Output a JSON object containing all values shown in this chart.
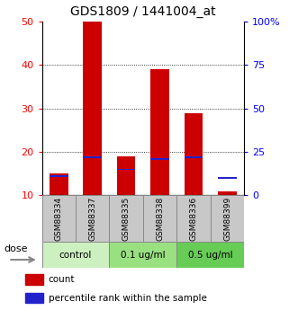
{
  "title": "GDS1809 / 1441004_at",
  "samples": [
    "GSM88334",
    "GSM88337",
    "GSM88335",
    "GSM88338",
    "GSM88336",
    "GSM88399"
  ],
  "red_values": [
    15,
    50,
    19,
    39,
    29,
    11
  ],
  "blue_values": [
    11,
    22,
    15,
    21,
    22,
    10
  ],
  "ylim_left": [
    10,
    50
  ],
  "ylim_right": [
    0,
    100
  ],
  "yticks_left": [
    10,
    20,
    30,
    40,
    50
  ],
  "yticks_right": [
    0,
    25,
    50,
    75,
    100
  ],
  "ytick_labels_right": [
    "0",
    "25",
    "50",
    "75",
    "100%"
  ],
  "dose_groups": [
    {
      "label": "control",
      "indices": [
        0,
        1
      ],
      "color": "#ccf0c0"
    },
    {
      "label": "0.1 ug/ml",
      "indices": [
        2,
        3
      ],
      "color": "#99e080"
    },
    {
      "label": "0.5 ug/ml",
      "indices": [
        4,
        5
      ],
      "color": "#66cc55"
    }
  ],
  "bar_width": 0.55,
  "bar_color_red": "#cc0000",
  "bar_color_blue": "#2222cc",
  "sample_box_color": "#c8c8c8",
  "legend_count_color": "#cc0000",
  "legend_pct_color": "#2222cc",
  "dose_label": "dose"
}
